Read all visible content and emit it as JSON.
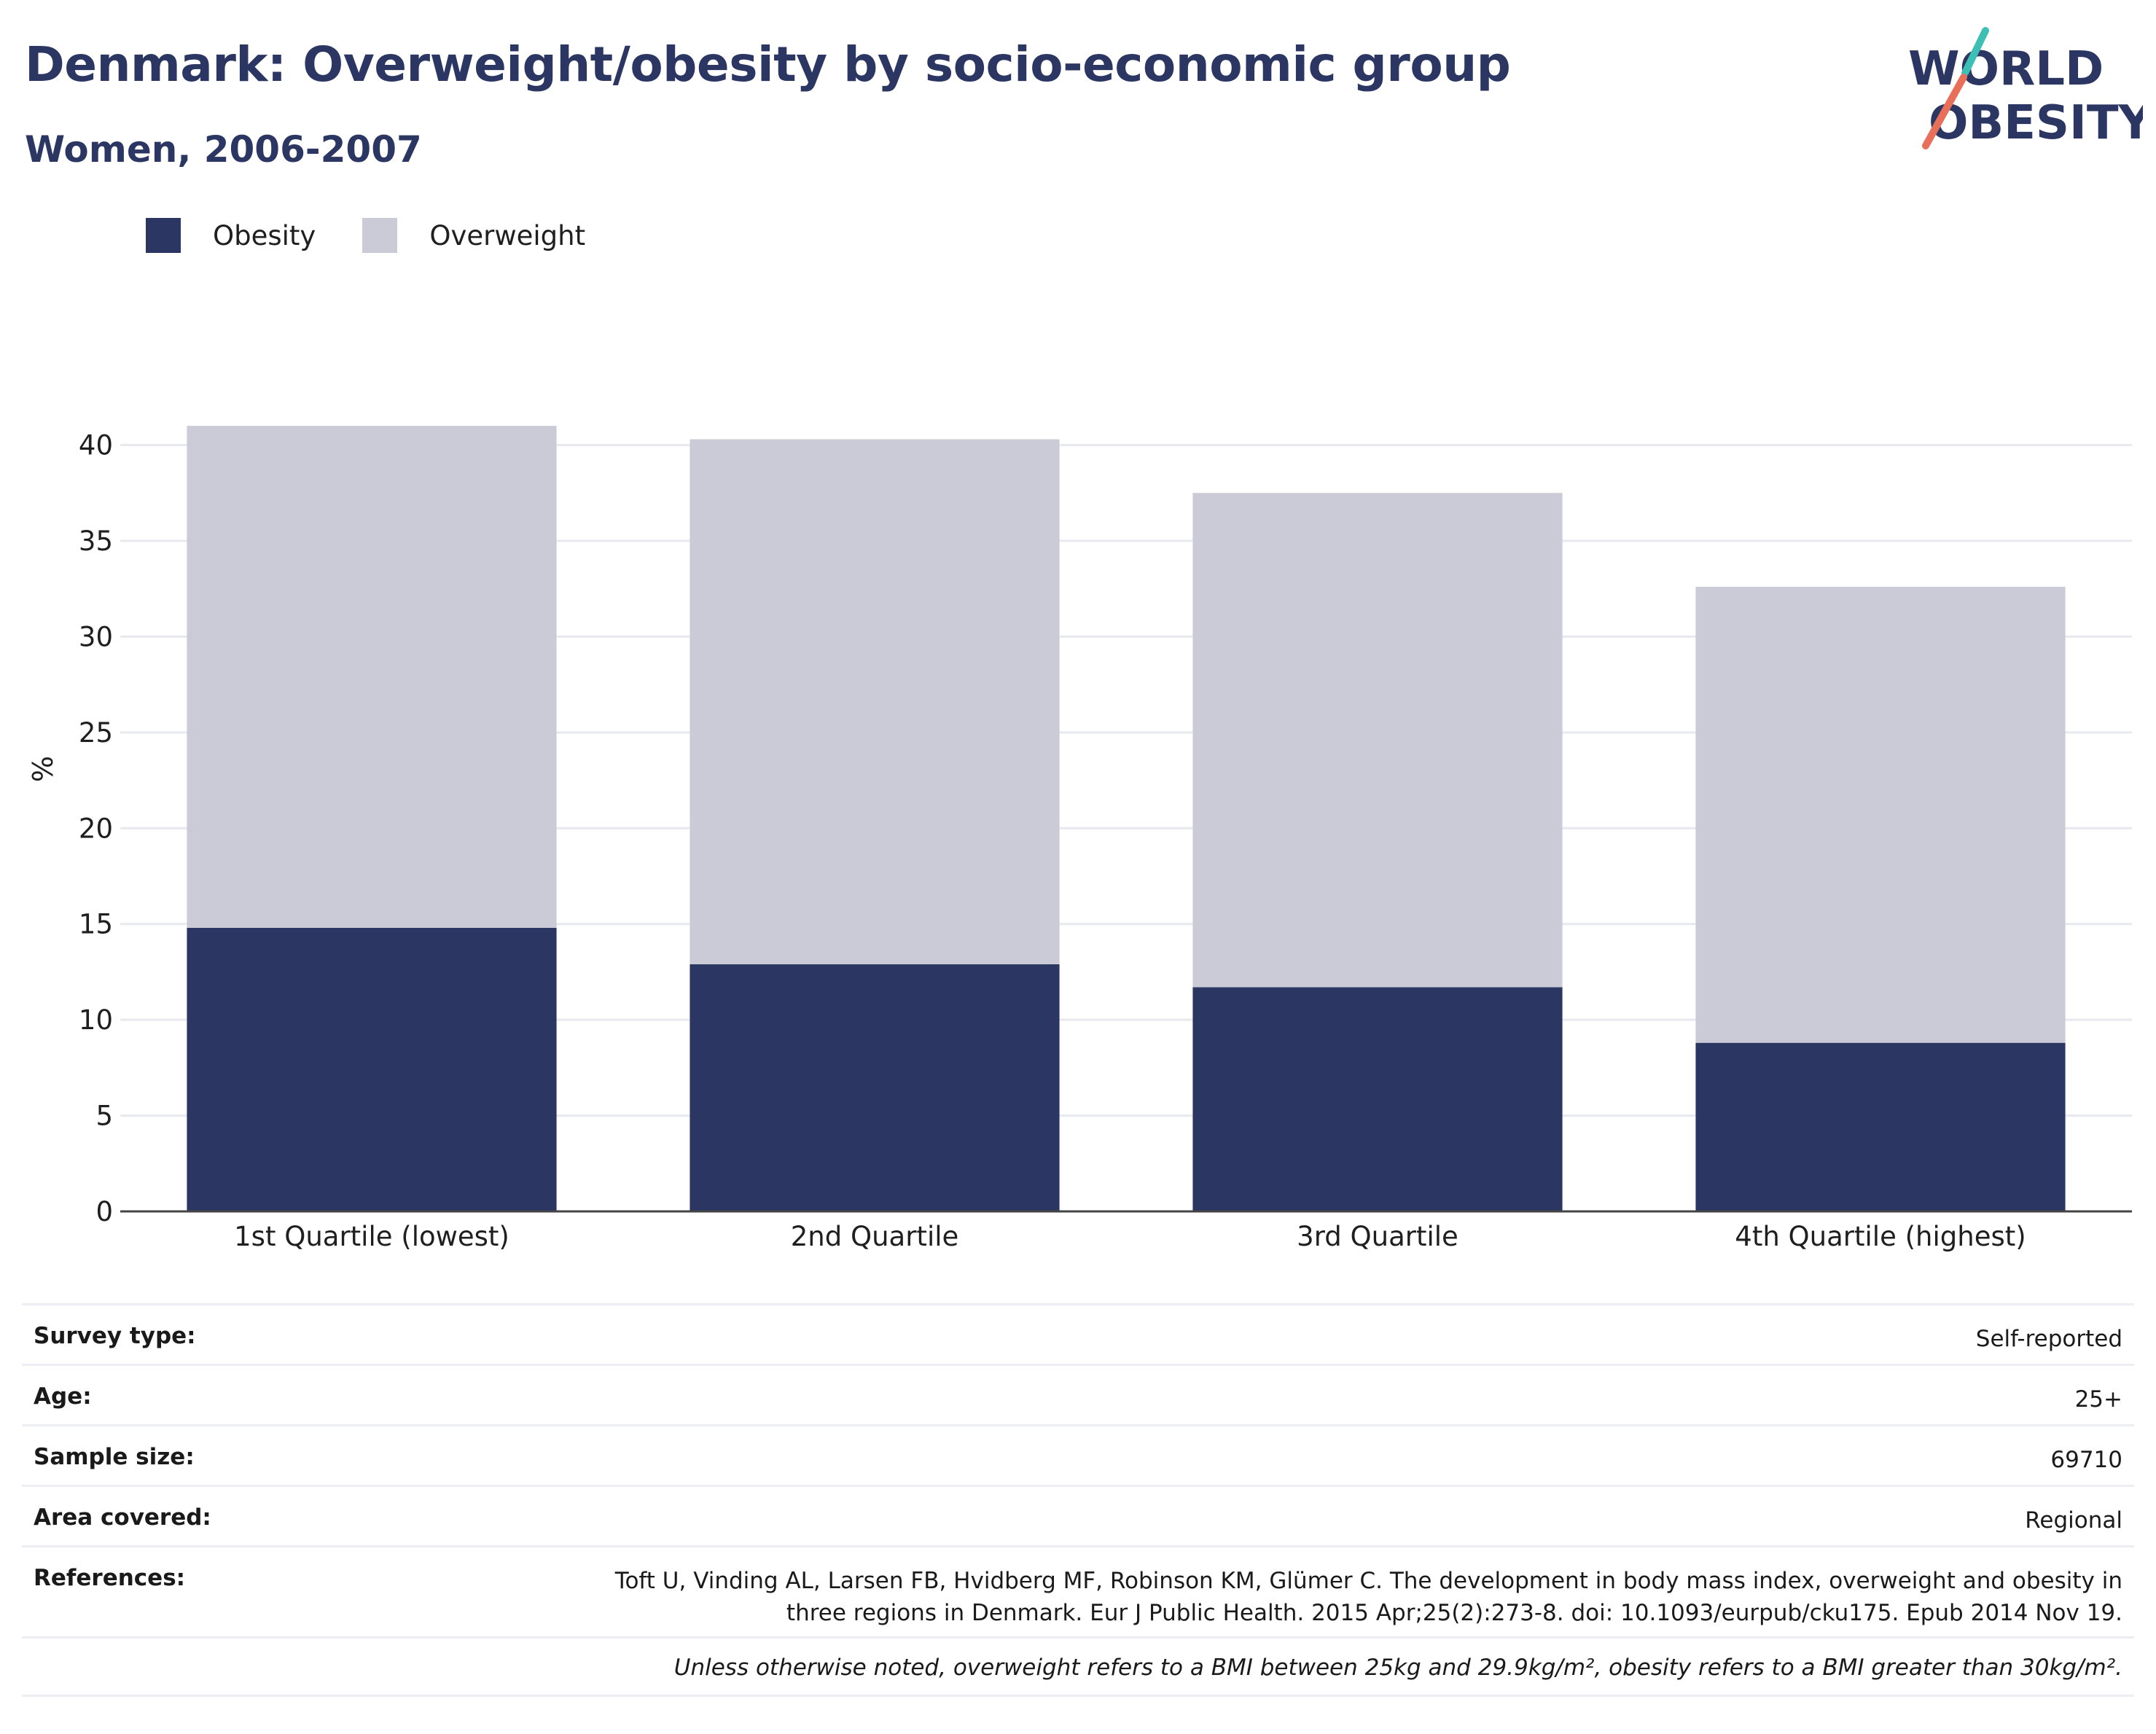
{
  "header": {
    "title": "Denmark: Overweight/obesity by socio-economic group",
    "subtitle": "Women, 2006-2007"
  },
  "logo": {
    "line1": "WORLD",
    "line2": "OBESITY",
    "slash_colors": [
      "#3dbfb6",
      "#e8705a"
    ]
  },
  "legend": {
    "items": [
      {
        "label": "Obesity",
        "color": "#2b3663"
      },
      {
        "label": "Overweight",
        "color": "#cacbd7"
      }
    ]
  },
  "chart_data": {
    "type": "bar",
    "stacked": true,
    "categories": [
      "1st Quartile (lowest)",
      "2nd Quartile",
      "3rd Quartile",
      "4th Quartile (highest)"
    ],
    "series": [
      {
        "name": "Obesity",
        "color": "#2b3663",
        "values": [
          14.8,
          12.9,
          11.7,
          8.8
        ]
      },
      {
        "name": "Overweight",
        "color": "#cacbd7",
        "values": [
          26.2,
          27.4,
          25.8,
          23.8
        ]
      }
    ],
    "ylabel": "%",
    "ylim": [
      0,
      42
    ],
    "yticks": [
      0,
      5,
      10,
      15,
      20,
      25,
      30,
      35,
      40
    ],
    "grid": true,
    "legend_position": "top-left"
  },
  "meta": {
    "rows": [
      {
        "label": "Survey type:",
        "value": "Self-reported"
      },
      {
        "label": "Age:",
        "value": "25+"
      },
      {
        "label": "Sample size:",
        "value": "69710"
      },
      {
        "label": "Area covered:",
        "value": "Regional"
      }
    ],
    "references_label": "References:",
    "references_line1": "Toft U, Vinding AL, Larsen FB, Hvidberg MF, Robinson KM, Glümer C. The development in body mass index, overweight and obesity in",
    "references_line2": "three regions in Denmark. Eur J Public Health. 2015 Apr;25(2):273-8. doi: 10.1093/eurpub/cku175. Epub 2014 Nov 19.",
    "note": "Unless otherwise noted, overweight refers to a BMI between 25kg and 29.9kg/m², obesity refers to a BMI greater than 30kg/m²."
  }
}
